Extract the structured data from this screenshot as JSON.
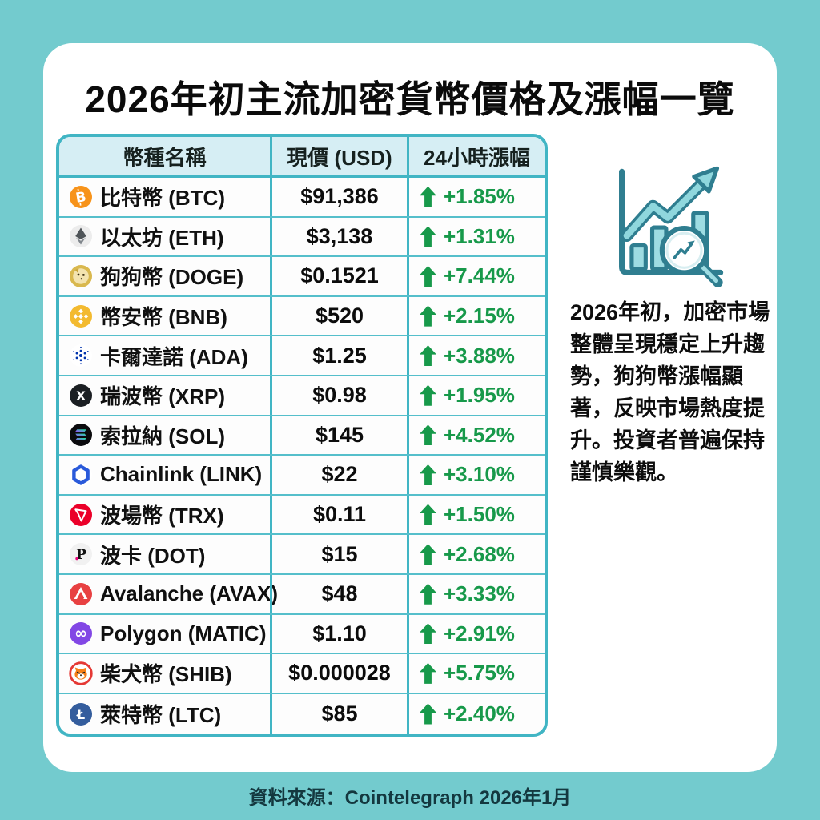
{
  "page": {
    "title": "2026年初主流加密貨幣價格及漲幅一覽",
    "footer": "資料來源：Cointelegraph 2026年1月",
    "colors": {
      "background": "#73cbce",
      "card": "#ffffff",
      "table_border": "#41b5c4",
      "table_header_bg": "#d6eef4",
      "positive_green": "#17994a"
    }
  },
  "table": {
    "headers": [
      "幣種名稱",
      "現價 (USD)",
      "24小時漲幅"
    ],
    "rows": [
      {
        "icon": "btc",
        "name": "比特幣 (BTC)",
        "price": "$91,386",
        "change": "+1.85%"
      },
      {
        "icon": "eth",
        "name": "以太坊 (ETH)",
        "price": "$3,138",
        "change": "+1.31%"
      },
      {
        "icon": "doge",
        "name": "狗狗幣 (DOGE)",
        "price": "$0.1521",
        "change": "+7.44%"
      },
      {
        "icon": "bnb",
        "name": "幣安幣 (BNB)",
        "price": "$520",
        "change": "+2.15%"
      },
      {
        "icon": "ada",
        "name": "卡爾達諾 (ADA)",
        "price": "$1.25",
        "change": "+3.88%"
      },
      {
        "icon": "xrp",
        "name": "瑞波幣 (XRP)",
        "price": "$0.98",
        "change": "+1.95%"
      },
      {
        "icon": "sol",
        "name": "索拉納 (SOL)",
        "price": "$145",
        "change": "+4.52%"
      },
      {
        "icon": "link",
        "name": "Chainlink (LINK)",
        "price": "$22",
        "change": "+3.10%"
      },
      {
        "icon": "trx",
        "name": "波場幣 (TRX)",
        "price": "$0.11",
        "change": "+1.50%"
      },
      {
        "icon": "dot",
        "name": "波卡 (DOT)",
        "price": "$15",
        "change": "+2.68%"
      },
      {
        "icon": "avax",
        "name": "Avalanche (AVAX)",
        "price": "$48",
        "change": "+3.33%"
      },
      {
        "icon": "matic",
        "name": "Polygon (MATIC)",
        "price": "$1.10",
        "change": "+2.91%"
      },
      {
        "icon": "shib",
        "name": "柴犬幣 (SHIB)",
        "price": "$0.000028",
        "change": "+5.75%"
      },
      {
        "icon": "ltc",
        "name": "萊特幣 (LTC)",
        "price": "$85",
        "change": "+2.40%"
      }
    ]
  },
  "sidebar": {
    "illustration": "growth-bar-chart-with-magnifier-icon",
    "summary": "2026年初，加密市場整體呈現穩定上升趨勢，狗狗幣漲幅顯著，反映市場熱度提升。投資者普遍保持謹慎樂觀。"
  },
  "chart_data": {
    "type": "table",
    "title": "2026年初主流加密貨幣價格及漲幅一覽",
    "columns": [
      "幣種名稱",
      "現價 (USD)",
      "24小時漲幅"
    ],
    "rows": [
      [
        "比特幣 (BTC)",
        91386,
        1.85
      ],
      [
        "以太坊 (ETH)",
        3138,
        1.31
      ],
      [
        "狗狗幣 (DOGE)",
        0.1521,
        7.44
      ],
      [
        "幣安幣 (BNB)",
        520,
        2.15
      ],
      [
        "卡爾達諾 (ADA)",
        1.25,
        3.88
      ],
      [
        "瑞波幣 (XRP)",
        0.98,
        1.95
      ],
      [
        "索拉納 (SOL)",
        145,
        4.52
      ],
      [
        "Chainlink (LINK)",
        22,
        3.1
      ],
      [
        "波場幣 (TRX)",
        0.11,
        1.5
      ],
      [
        "波卡 (DOT)",
        15,
        2.68
      ],
      [
        "Avalanche (AVAX)",
        48,
        3.33
      ],
      [
        "Polygon (MATIC)",
        1.1,
        2.91
      ],
      [
        "柴犬幣 (SHIB)",
        2.8e-05,
        5.75
      ],
      [
        "萊特幣 (LTC)",
        85,
        2.4
      ]
    ],
    "units": {
      "price": "USD",
      "change": "% (24h)"
    },
    "all_changes_positive": true,
    "source": "Cointelegraph 2026年1月"
  }
}
